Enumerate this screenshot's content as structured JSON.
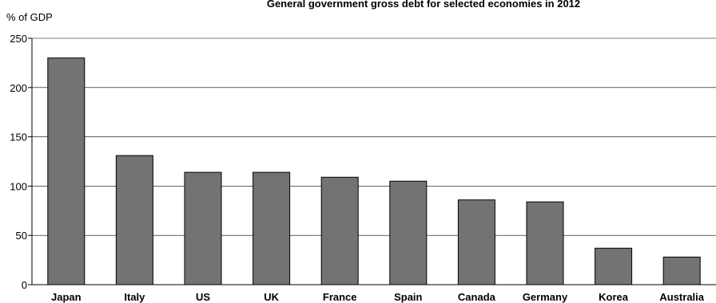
{
  "chart_data": {
    "type": "bar",
    "title": "General government gross debt for selected economies in 2012",
    "ylabel": "% of GDP",
    "xlabel": "",
    "categories": [
      "Japan",
      "Italy",
      "US",
      "UK",
      "France",
      "Spain",
      "Canada",
      "Germany",
      "Korea",
      "Australia"
    ],
    "values": [
      230,
      131,
      114,
      114,
      109,
      105,
      86,
      84,
      37,
      28
    ],
    "ylim": [
      0,
      250
    ],
    "yticks": [
      0,
      50,
      100,
      150,
      200,
      250
    ],
    "grid": true,
    "legend": "none",
    "colors": {
      "bar_fill": "#737373",
      "bar_stroke": "#000000",
      "grid": "#000000",
      "background": "#ffffff"
    }
  }
}
